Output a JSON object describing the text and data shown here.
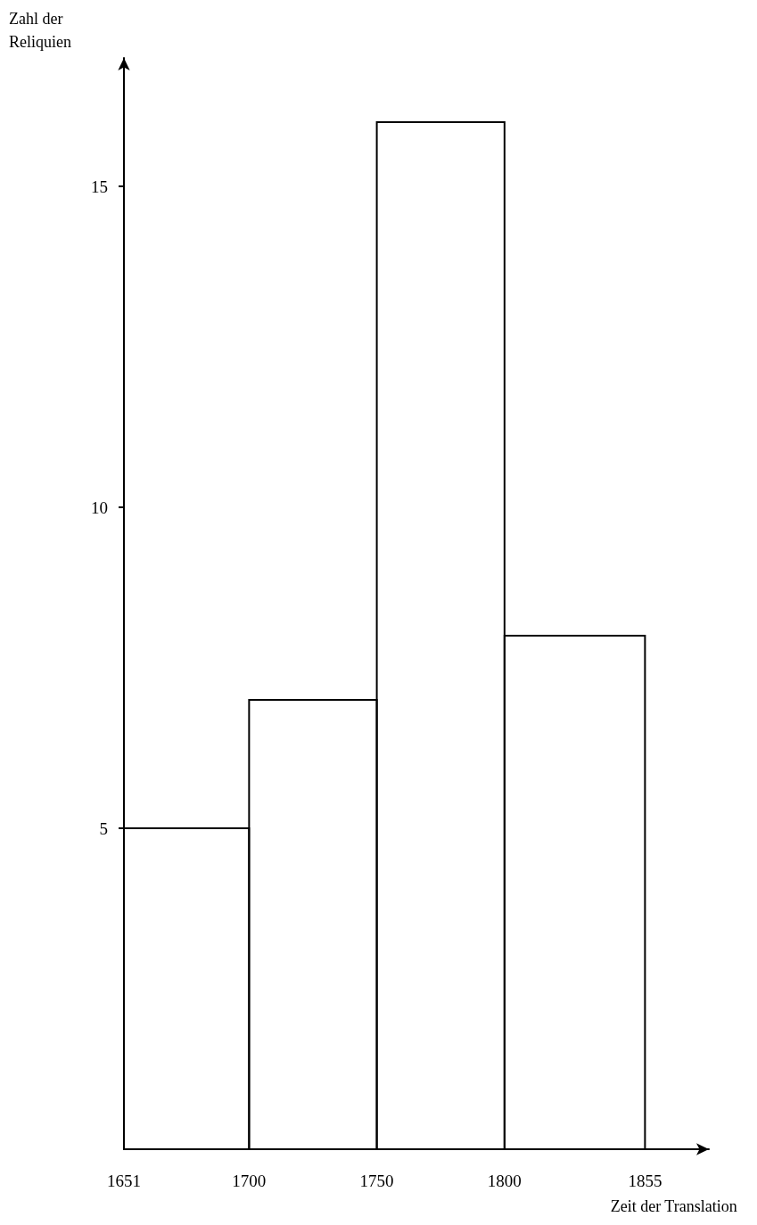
{
  "chart_data": {
    "type": "histogram",
    "xlabel": "Zeit der Translation",
    "ylabel": "Zahl der Reliquien",
    "bins": [
      1651,
      1700,
      1750,
      1800,
      1855
    ],
    "values": [
      5,
      7,
      16,
      8
    ],
    "color": "#000000",
    "xlim": [
      1651,
      1880
    ],
    "xticks": [
      1651,
      1700,
      1750,
      1800,
      1855
    ],
    "ylim": [
      0,
      17
    ],
    "yticks": [
      5,
      10,
      15
    ],
    "grid": false
  }
}
